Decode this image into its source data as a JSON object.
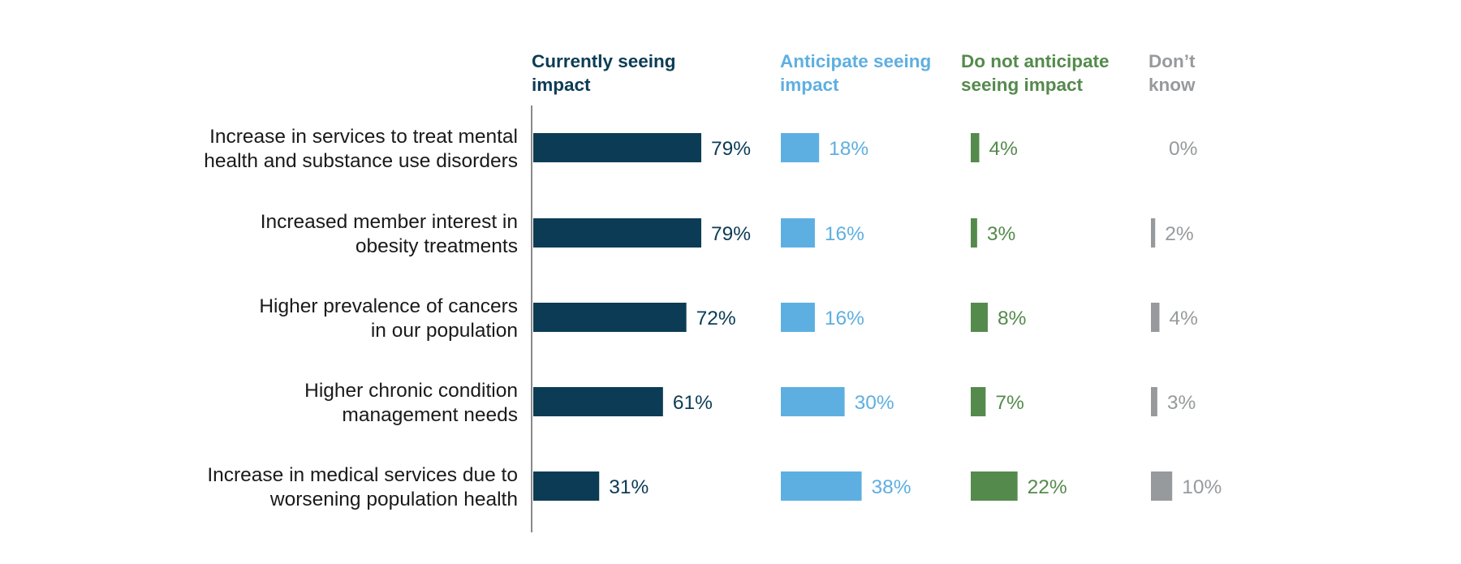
{
  "chart_data": {
    "type": "bar",
    "categories": [
      [
        "Increase in services to treat mental",
        "health and substance use disorders"
      ],
      [
        "Increased member interest in",
        "obesity treatments"
      ],
      [
        "Higher prevalence of cancers",
        "in our population"
      ],
      [
        "Higher chronic condition",
        "management needs"
      ],
      [
        "Increase in medical services due to",
        "worsening population health"
      ]
    ],
    "series": [
      {
        "name": [
          "Currently seeing",
          "impact"
        ],
        "color": "#0c3c55",
        "values": [
          79,
          79,
          72,
          61,
          31
        ],
        "labels": [
          "79%",
          "79%",
          "72%",
          "61%",
          "31%"
        ]
      },
      {
        "name": [
          "Anticipate seeing",
          "impact"
        ],
        "color": "#5eafe1",
        "values": [
          18,
          16,
          16,
          30,
          38
        ],
        "labels": [
          "18%",
          "16%",
          "16%",
          "30%",
          "38%"
        ]
      },
      {
        "name": [
          "Do not anticipate",
          "seeing impact"
        ],
        "color": "#548a4c",
        "values": [
          4,
          3,
          8,
          7,
          22
        ],
        "labels": [
          "4%",
          "3%",
          "8%",
          "7%",
          "22%"
        ]
      },
      {
        "name": [
          "Don’t",
          "know"
        ],
        "color": "#979a9c",
        "values": [
          0,
          2,
          4,
          3,
          10
        ],
        "labels": [
          "0%",
          "2%",
          "4%",
          "3%",
          "10%"
        ]
      }
    ],
    "xlim": [
      0,
      100
    ],
    "unit": "%",
    "title": "",
    "xlabel": "",
    "ylabel": "",
    "grid": false,
    "legend": "column headers above bars"
  }
}
